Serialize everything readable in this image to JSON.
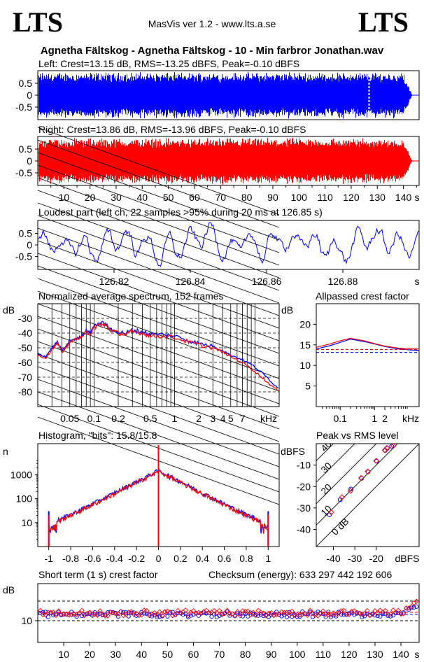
{
  "header": {
    "logo_left": "LTS",
    "logo_right": "LTS",
    "app": "MasVis ver 1.2 - www.lts.a.se",
    "file": "Agnetha Fältskog - Agnetha Fältskog - 10 - Min farbror Jonathan.wav"
  },
  "colors": {
    "left": "#0000ff",
    "right": "#ff0000",
    "axis": "#000000"
  },
  "chart_data": [
    {
      "id": "left_wave",
      "type": "area",
      "title": "Left: Crest=13.15 dB, RMS=-13.25 dBFS, Peak=-0.10 dBFS",
      "yticks": [
        "0.5",
        "0",
        "-0.5"
      ],
      "ylim": [
        -1,
        1
      ],
      "xlim": [
        0,
        146
      ],
      "duration_s": 146,
      "fade_start_s": 140,
      "marker_s": 126.85,
      "series": [
        {
          "color": "#0000ff"
        }
      ]
    },
    {
      "id": "right_wave",
      "type": "area",
      "title": "Right: Crest=13.86 dB, RMS=-13.96 dBFS, Peak=-0.10 dBFS",
      "yticks": [
        "0.5",
        "0",
        "-0.5"
      ],
      "ylim": [
        -1,
        1
      ],
      "xlim": [
        0,
        146
      ],
      "xticks": [
        "10",
        "20",
        "30",
        "40",
        "50",
        "60",
        "70",
        "80",
        "90",
        "100",
        "110",
        "120",
        "130",
        "140"
      ],
      "x_unit": "s",
      "series": [
        {
          "color": "#ff0000"
        }
      ]
    },
    {
      "id": "loudest",
      "type": "line",
      "title": "Loudest part (left  ch, 22 samples >95% during 20 ms at 126.85 s)",
      "yticks": [
        "0.5",
        "0",
        "-0.5"
      ],
      "ylim": [
        -1,
        1
      ],
      "xlim": [
        126.8,
        126.9
      ],
      "xticks": [
        "126.82",
        "126.84",
        "126.86",
        "126.88"
      ],
      "x_unit": "s"
    },
    {
      "id": "spectrum",
      "type": "line",
      "title": "Normalized average spectrum, 152 frames",
      "ylabel": "dB",
      "yticks": [
        "-30",
        "-40",
        "-50",
        "-60",
        "-70",
        "-80"
      ],
      "ylim": [
        -90,
        -20
      ],
      "xlim_khz": [
        0.02,
        20
      ],
      "xticks": [
        "0.05",
        "0.1",
        "0.2",
        "0.5",
        "1",
        "2",
        "3",
        "4",
        "5",
        "7"
      ],
      "x_unit": "kHz",
      "points_khz": [
        0.02,
        0.025,
        0.03,
        0.035,
        0.04,
        0.045,
        0.05,
        0.06,
        0.07,
        0.08,
        0.09,
        0.1,
        0.12,
        0.14,
        0.16,
        0.2,
        0.25,
        0.3,
        0.4,
        0.5,
        0.7,
        1,
        1.5,
        2,
        3,
        4,
        5,
        7,
        10,
        14,
        20
      ],
      "series": [
        {
          "values": [
            -54,
            -56,
            -50,
            -46,
            -52,
            -49,
            -45,
            -44,
            -42,
            -38,
            -40,
            -35,
            -33,
            -34,
            -38,
            -39,
            -40,
            -38,
            -39,
            -41,
            -41,
            -42,
            -45,
            -47,
            -49,
            -52,
            -55,
            -58,
            -63,
            -70,
            -78
          ]
        },
        {
          "values": [
            -55,
            -57,
            -51,
            -47,
            -53,
            -50,
            -46,
            -44,
            -43,
            -39,
            -41,
            -36,
            -34,
            -35,
            -38,
            -40,
            -41,
            -39,
            -40,
            -42,
            -42,
            -43,
            -46,
            -48,
            -50,
            -53,
            -56,
            -60,
            -66,
            -73,
            -80
          ]
        }
      ]
    },
    {
      "id": "allpass",
      "type": "line",
      "title": "Allpassed crest factor",
      "ylabel": "dB",
      "yticks": [
        "20",
        "15",
        "10",
        "5"
      ],
      "ylim": [
        0,
        25
      ],
      "xticks": [
        "0.1",
        "1",
        "2"
      ],
      "x_unit": "kHz",
      "points_khz": [
        0.02,
        0.05,
        0.1,
        0.2,
        0.5,
        1,
        2,
        5,
        20
      ],
      "series": [
        {
          "values": [
            14.0,
            14.8,
            15.6,
            16.4,
            15.8,
            15.2,
            14.6,
            14.0,
            13.6
          ],
          "dashed_level": 13.15
        },
        {
          "values": [
            14.4,
            15.2,
            16.0,
            16.6,
            16.0,
            15.3,
            14.7,
            14.2,
            14.0
          ],
          "dashed_level": 13.86
        }
      ]
    },
    {
      "id": "histogram",
      "type": "line",
      "title": "Histogram, \"bits\": 15.8/15.8",
      "ylabel": "n",
      "yscale": "log",
      "yticks": [
        "1000",
        "100",
        "10"
      ],
      "xlim": [
        -1.1,
        1.1
      ],
      "xticks": [
        "-1",
        "-0.8",
        "-0.6",
        "-0.4",
        "-0.2",
        "0",
        "0.2",
        "0.4",
        "0.6",
        "0.8",
        "1"
      ]
    },
    {
      "id": "peak_rms",
      "type": "scatter",
      "title": "Peak vs RMS level",
      "ylabel": "dBFS",
      "yticks": [
        "-10",
        "-20",
        "-30",
        "-40"
      ],
      "xticks": [
        "-40",
        "-30",
        "-20"
      ],
      "x_unit": "dBFS",
      "crest_lines": [
        "40",
        "30",
        "20",
        "10",
        "0 dB"
      ],
      "series": [
        {
          "points": [
            [
              -16,
              -3
            ],
            [
              -15,
              -2
            ],
            [
              -20,
              -8
            ],
            [
              -24,
              -13
            ],
            [
              -27,
              -16
            ],
            [
              -32,
              -21
            ],
            [
              -37,
              -26
            ],
            [
              -42,
              -33
            ],
            [
              -13,
              -1
            ]
          ]
        },
        {
          "points": [
            [
              -16,
              -3
            ],
            [
              -15,
              -2
            ],
            [
              -20,
              -8
            ],
            [
              -24,
              -13
            ],
            [
              -27,
              -16
            ],
            [
              -32,
              -22
            ],
            [
              -36,
              -25
            ],
            [
              -41,
              -32
            ],
            [
              -12,
              -1
            ]
          ]
        }
      ]
    },
    {
      "id": "short_crest",
      "type": "scatter",
      "title": "Short term (1 s) crest factor",
      "ylabel": "dB",
      "ytick": "10",
      "xlim": [
        0,
        147
      ],
      "xticks": [
        "10",
        "20",
        "30",
        "40",
        "50",
        "60",
        "70",
        "80",
        "90",
        "100",
        "110",
        "120",
        "130",
        "140"
      ],
      "x_unit": "s"
    }
  ],
  "checksum": "Checksum (energy):   633 297 442 192 606"
}
